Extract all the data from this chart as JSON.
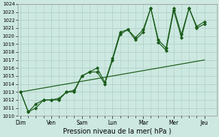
{
  "bg_color": "#cce8e0",
  "grid_color": "#aaccc4",
  "line_color": "#1a5c1a",
  "xlabel": "Pression niveau de la mer( hPa )",
  "ylim": [
    1010,
    1024
  ],
  "yticks": [
    1010,
    1011,
    1012,
    1013,
    1014,
    1015,
    1016,
    1017,
    1018,
    1019,
    1020,
    1021,
    1022,
    1023,
    1024
  ],
  "x_labels": [
    "Dim",
    "Ven",
    "Sam",
    "Lun",
    "Mar",
    "Mer",
    "Jeu"
  ],
  "x_major_ticks": [
    0,
    2,
    4,
    6,
    8,
    10,
    12
  ],
  "x_minor_ticks": [
    0,
    0.5,
    1,
    1.5,
    2,
    2.5,
    3,
    3.5,
    4,
    4.5,
    5,
    5.5,
    6,
    6.5,
    7,
    7.5,
    8,
    8.5,
    9,
    9.5,
    10,
    10.5,
    11,
    11.5,
    12
  ],
  "xlim": [
    -0.2,
    12.8
  ],
  "series1_x": [
    0,
    0.5,
    1,
    1.5,
    2,
    2.5,
    3,
    3.5,
    4,
    4.5,
    5,
    5.5,
    6,
    6.5,
    7,
    7.5,
    8,
    8.5,
    9,
    9.5,
    10,
    10.5,
    11,
    11.5,
    12
  ],
  "series1_y": [
    1013,
    1010.5,
    1011,
    1012,
    1012,
    1012,
    1013,
    1013,
    1015,
    1015.5,
    1015.5,
    1014,
    1017,
    1020.2,
    1020.8,
    1019.5,
    1020.5,
    1023.5,
    1019.2,
    1018.2,
    1023.2,
    1019.8,
    1023.5,
    1021,
    1021.5
  ],
  "series2_x": [
    0,
    0.5,
    1,
    1.5,
    2,
    2.5,
    3,
    3.5,
    4,
    4.5,
    5,
    5.5,
    6,
    6.5,
    7,
    7.5,
    8,
    8.5,
    9,
    9.5,
    10,
    10.5,
    11,
    11.5,
    12
  ],
  "series2_y": [
    1013,
    1010.5,
    1011.5,
    1012,
    1012,
    1012.2,
    1013,
    1013.2,
    1015,
    1015.5,
    1016,
    1014.2,
    1017.2,
    1020.5,
    1020.8,
    1019.8,
    1020.8,
    1023.5,
    1019.5,
    1018.5,
    1023.5,
    1020.2,
    1023.5,
    1021.2,
    1021.8
  ],
  "trend_x": [
    0,
    12
  ],
  "trend_y": [
    1013,
    1017
  ],
  "marker_size": 2.5,
  "lw": 0.9,
  "lw_trend": 0.9,
  "xlabel_fontsize": 7,
  "ytick_fontsize": 5,
  "xtick_fontsize": 5.5
}
